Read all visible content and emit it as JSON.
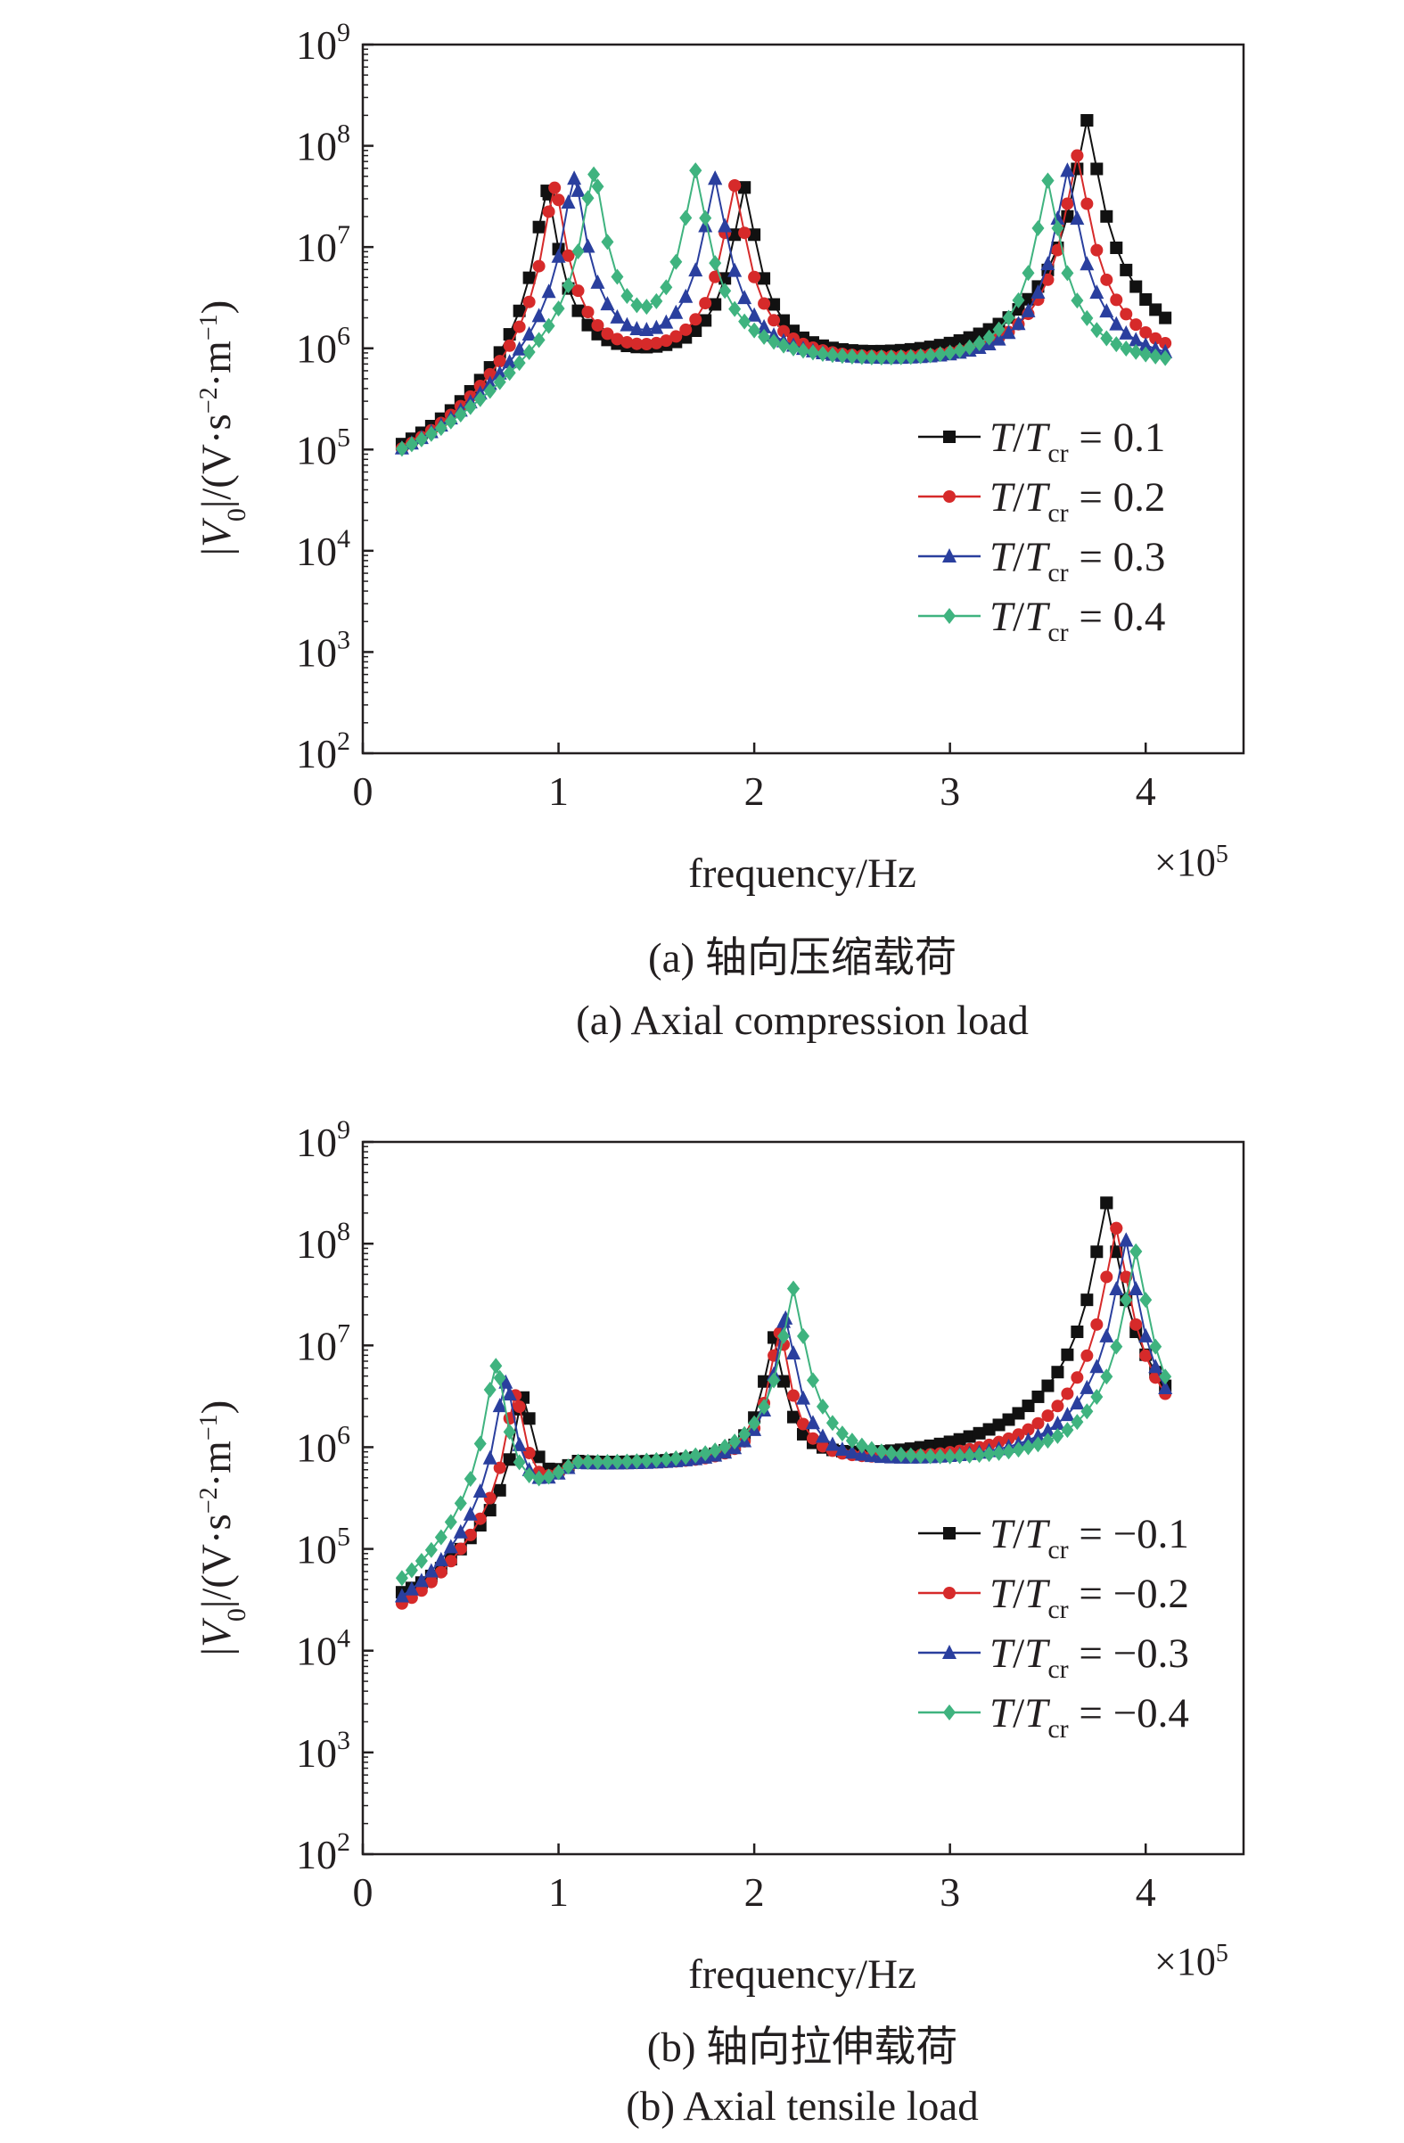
{
  "chart_data": [
    {
      "type": "line",
      "scale": "log-y",
      "xlabel": "frequency/Hz",
      "x_multiplier": "×10",
      "x_multiplier_exp": "5",
      "xlim": [
        0,
        4.5
      ],
      "x_ticks": [
        "0",
        "1",
        "2",
        "3",
        "4"
      ],
      "ylim_exp": [
        2,
        9
      ],
      "y_ticks": [
        {
          "base": "10",
          "exp": "2"
        },
        {
          "base": "10",
          "exp": "3"
        },
        {
          "base": "10",
          "exp": "4"
        },
        {
          "base": "10",
          "exp": "5"
        },
        {
          "base": "10",
          "exp": "6"
        },
        {
          "base": "10",
          "exp": "7"
        },
        {
          "base": "10",
          "exp": "8"
        },
        {
          "base": "10",
          "exp": "9"
        }
      ],
      "ylabel": {
        "pre": "|",
        "v": "V",
        "sub": "0",
        "mid": "|/(V·s",
        "sup1": "−2",
        "dot": "·m",
        "sup2": "−1",
        "post": ")"
      },
      "caption_cn": "(a) 轴向压缩载荷",
      "caption_en": "(a) Axial compression load",
      "legend_position": "right",
      "series": [
        {
          "name": "T/Tcr = 0.1",
          "label": {
            "t": "T",
            "slash": "/",
            "tsub": "T",
            "sub": "cr",
            "val": " = 0.1"
          },
          "color": "#111111",
          "marker": "square",
          "peaks": [
            {
              "f": 0.94,
              "a": 7.55
            },
            {
              "f": 1.95,
              "a": 7.58
            },
            {
              "f": 3.7,
              "a": 8.25
            }
          ]
        },
        {
          "name": "T/Tcr = 0.2",
          "label": {
            "t": "T",
            "slash": "/",
            "tsub": "T",
            "sub": "cr",
            "val": " = 0.2"
          },
          "color": "#d62a2a",
          "marker": "circle",
          "peaks": [
            {
              "f": 0.98,
              "a": 7.58
            },
            {
              "f": 1.9,
              "a": 7.6
            },
            {
              "f": 3.65,
              "a": 7.9
            }
          ]
        },
        {
          "name": "T/Tcr = 0.3",
          "label": {
            "t": "T",
            "slash": "/",
            "tsub": "T",
            "sub": "cr",
            "val": " = 0.3"
          },
          "color": "#2a3f9e",
          "marker": "triangle",
          "peaks": [
            {
              "f": 1.08,
              "a": 7.67
            },
            {
              "f": 1.8,
              "a": 7.67
            },
            {
              "f": 3.6,
              "a": 7.75
            }
          ]
        },
        {
          "name": "T/Tcr = 0.4",
          "label": {
            "t": "T",
            "slash": "/",
            "tsub": "T",
            "sub": "cr",
            "val": " = 0.4"
          },
          "color": "#3fb37f",
          "marker": "diamond",
          "peaks": [
            {
              "f": 1.18,
              "a": 7.71
            },
            {
              "f": 1.7,
              "a": 7.75
            },
            {
              "f": 3.5,
              "a": 7.65
            }
          ]
        }
      ]
    },
    {
      "type": "line",
      "scale": "log-y",
      "xlabel": "frequency/Hz",
      "x_multiplier": "×10",
      "x_multiplier_exp": "5",
      "xlim": [
        0,
        4.5
      ],
      "x_ticks": [
        "0",
        "1",
        "2",
        "3",
        "4"
      ],
      "ylim_exp": [
        2,
        9
      ],
      "y_ticks": [
        {
          "base": "10",
          "exp": "2"
        },
        {
          "base": "10",
          "exp": "3"
        },
        {
          "base": "10",
          "exp": "4"
        },
        {
          "base": "10",
          "exp": "5"
        },
        {
          "base": "10",
          "exp": "6"
        },
        {
          "base": "10",
          "exp": "7"
        },
        {
          "base": "10",
          "exp": "8"
        },
        {
          "base": "10",
          "exp": "9"
        }
      ],
      "ylabel": {
        "pre": "|",
        "v": "V",
        "sub": "0",
        "mid": "|/(V·s",
        "sup1": "−2",
        "dot": "·m",
        "sup2": "−1",
        "post": ")"
      },
      "caption_cn": "(b) 轴向拉伸载荷",
      "caption_en": "(b) Axial tensile load",
      "legend_position": "right",
      "series": [
        {
          "name": "T/Tcr = −0.1",
          "label": {
            "t": "T",
            "slash": "/",
            "tsub": "T",
            "sub": "cr",
            "val": " = −0.1"
          },
          "color": "#111111",
          "marker": "square",
          "peaks": [
            {
              "f": 0.82,
              "a": 6.45
            },
            {
              "f": 2.1,
              "a": 7.05
            },
            {
              "f": 3.8,
              "a": 8.4
            }
          ]
        },
        {
          "name": "T/Tcr = −0.2",
          "label": {
            "t": "T",
            "slash": "/",
            "tsub": "T",
            "sub": "cr",
            "val": " = −0.2"
          },
          "color": "#d62a2a",
          "marker": "circle",
          "peaks": [
            {
              "f": 0.78,
              "a": 6.48
            },
            {
              "f": 2.13,
              "a": 7.1
            },
            {
              "f": 3.85,
              "a": 8.15
            }
          ]
        },
        {
          "name": "T/Tcr = −0.3",
          "label": {
            "t": "T",
            "slash": "/",
            "tsub": "T",
            "sub": "cr",
            "val": " = −0.3"
          },
          "color": "#2a3f9e",
          "marker": "triangle",
          "peaks": [
            {
              "f": 0.73,
              "a": 6.62
            },
            {
              "f": 2.16,
              "a": 7.25
            },
            {
              "f": 3.9,
              "a": 8.03
            }
          ]
        },
        {
          "name": "T/Tcr = −0.4",
          "label": {
            "t": "T",
            "slash": "/",
            "tsub": "T",
            "sub": "cr",
            "val": " = −0.4"
          },
          "color": "#3fb37f",
          "marker": "diamond",
          "peaks": [
            {
              "f": 0.68,
              "a": 6.79
            },
            {
              "f": 2.2,
              "a": 7.55
            },
            {
              "f": 3.95,
              "a": 7.92
            }
          ]
        }
      ]
    }
  ]
}
